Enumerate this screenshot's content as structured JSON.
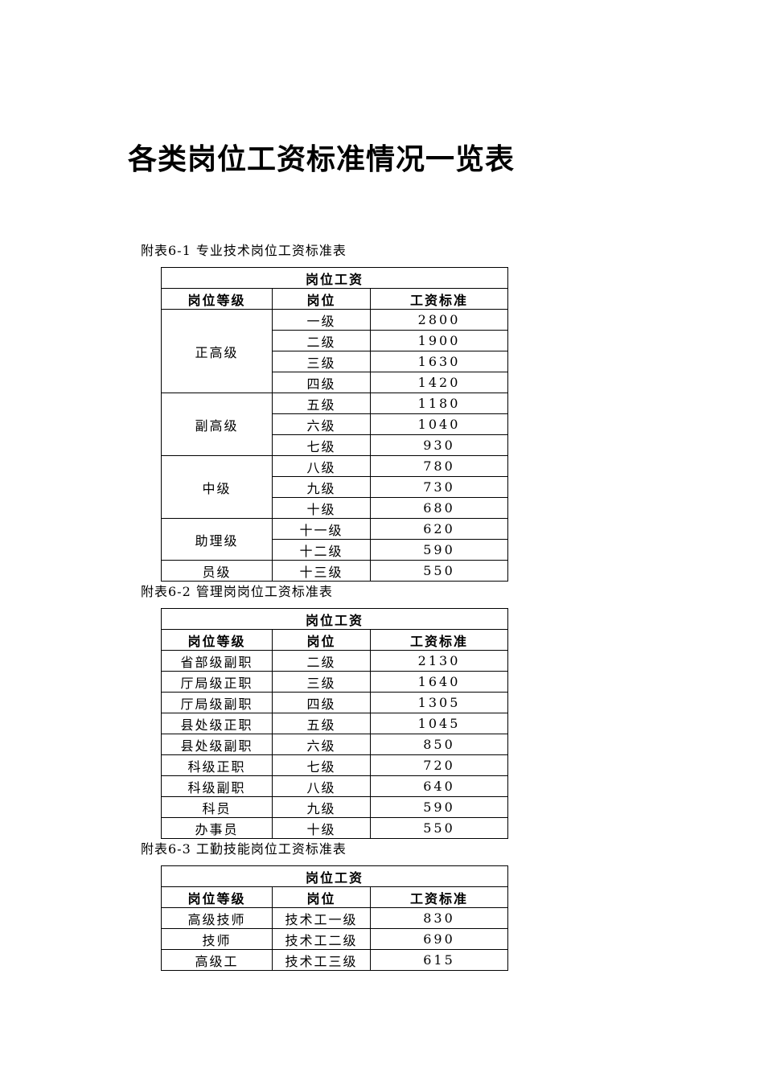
{
  "page": {
    "title": "各类岗位工资标准情况一览表"
  },
  "tables": [
    {
      "name": "professional-technical-salary-table",
      "caption": "附表6-1 专业技术岗位工资标准表",
      "span_header": "岗位工资",
      "columns": [
        "岗位等级",
        "岗位",
        "工资标准"
      ],
      "rows": [
        {
          "grade": "正高级",
          "grade_span": 4,
          "position": "一级",
          "salary": "2800"
        },
        {
          "position": "二级",
          "salary": "1900"
        },
        {
          "position": "三级",
          "salary": "1630"
        },
        {
          "position": "四级",
          "salary": "1420"
        },
        {
          "grade": "副高级",
          "grade_span": 3,
          "position": "五级",
          "salary": "1180"
        },
        {
          "position": "六级",
          "salary": "1040"
        },
        {
          "position": "七级",
          "salary": "930"
        },
        {
          "grade": "中级",
          "grade_span": 3,
          "position": "八级",
          "salary": "780"
        },
        {
          "position": "九级",
          "salary": "730"
        },
        {
          "position": "十级",
          "salary": "680"
        },
        {
          "grade": "助理级",
          "grade_span": 2,
          "position": "十一级",
          "salary": "620"
        },
        {
          "position": "十二级",
          "salary": "590"
        },
        {
          "grade": "员级",
          "grade_span": 1,
          "position": "十三级",
          "salary": "550"
        }
      ]
    },
    {
      "name": "management-salary-table",
      "caption": "附表6-2 管理岗岗位工资标准表",
      "span_header": "岗位工资",
      "columns": [
        "岗位等级",
        "岗位",
        "工资标准"
      ],
      "rows": [
        {
          "grade": "省部级副职",
          "grade_span": 1,
          "position": "二级",
          "salary": "2130"
        },
        {
          "grade": "厅局级正职",
          "grade_span": 1,
          "position": "三级",
          "salary": "1640"
        },
        {
          "grade": "厅局级副职",
          "grade_span": 1,
          "position": "四级",
          "salary": "1305"
        },
        {
          "grade": "县处级正职",
          "grade_span": 1,
          "position": "五级",
          "salary": "1045"
        },
        {
          "grade": "县处级副职",
          "grade_span": 1,
          "position": "六级",
          "salary": "850"
        },
        {
          "grade": "科级正职",
          "grade_span": 1,
          "position": "七级",
          "salary": "720"
        },
        {
          "grade": "科级副职",
          "grade_span": 1,
          "position": "八级",
          "salary": "640"
        },
        {
          "grade": "科员",
          "grade_span": 1,
          "position": "九级",
          "salary": "590"
        },
        {
          "grade": "办事员",
          "grade_span": 1,
          "position": "十级",
          "salary": "550"
        }
      ]
    },
    {
      "name": "worker-skill-salary-table",
      "caption": "附表6-3 工勤技能岗位工资标准表",
      "span_header": "岗位工资",
      "columns": [
        "岗位等级",
        "岗位",
        "工资标准"
      ],
      "rows": [
        {
          "grade": "高级技师",
          "grade_span": 1,
          "position": "技术工一级",
          "salary": "830"
        },
        {
          "grade": "技师",
          "grade_span": 1,
          "position": "技术工二级",
          "salary": "690"
        },
        {
          "grade": "高级工",
          "grade_span": 1,
          "position": "技术工三级",
          "salary": "615"
        }
      ]
    }
  ]
}
